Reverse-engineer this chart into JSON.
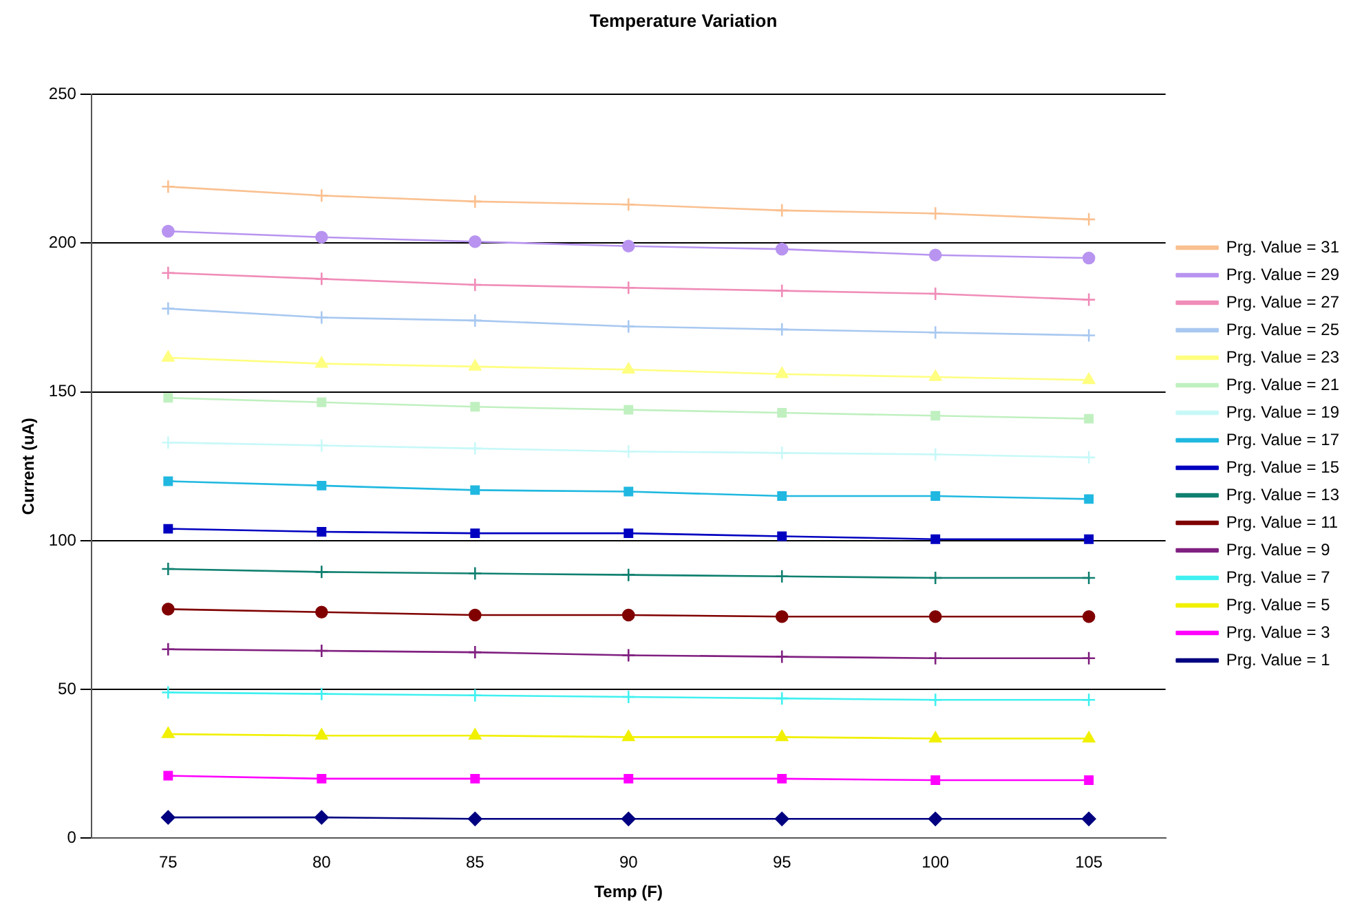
{
  "chart_data": {
    "type": "line",
    "title": "Temperature Variation",
    "xlabel": "Temp (F)",
    "ylabel": "Current (uA)",
    "categories": [
      "75",
      "80",
      "85",
      "90",
      "95",
      "100",
      "105"
    ],
    "ylim": [
      0,
      250
    ],
    "yticks": [
      0,
      50,
      100,
      150,
      200,
      250
    ],
    "grid": "y",
    "legend": "right",
    "line_style": "solid",
    "series": [
      {
        "name": "Prg. Value = 31",
        "color": "#fac090",
        "marker": "cross",
        "values": [
          219,
          216,
          214,
          213,
          211,
          210,
          208
        ]
      },
      {
        "name": "Prg. Value = 29",
        "color": "#b894f0",
        "marker": "circle",
        "values": [
          204,
          202,
          200.5,
          199,
          198,
          196,
          195
        ]
      },
      {
        "name": "Prg. Value = 27",
        "color": "#f08cb8",
        "marker": "cross",
        "values": [
          190,
          188,
          186,
          185,
          184,
          183,
          181
        ]
      },
      {
        "name": "Prg. Value = 25",
        "color": "#a8c8f0",
        "marker": "cross",
        "values": [
          178,
          175,
          174,
          172,
          171,
          170,
          169
        ]
      },
      {
        "name": "Prg. Value = 23",
        "color": "#ffff80",
        "marker": "triangle",
        "values": [
          161.5,
          159.5,
          158.5,
          157.5,
          156,
          155,
          154
        ]
      },
      {
        "name": "Prg. Value = 21",
        "color": "#c0f0c0",
        "marker": "square",
        "values": [
          148,
          146.5,
          145,
          144,
          143,
          142,
          141
        ]
      },
      {
        "name": "Prg. Value = 19",
        "color": "#c8f8f8",
        "marker": "cross",
        "values": [
          133,
          132,
          131,
          130,
          129.5,
          129,
          128
        ]
      },
      {
        "name": "Prg. Value = 17",
        "color": "#20b8e0",
        "marker": "square",
        "values": [
          120,
          118.5,
          117,
          116.5,
          115,
          115,
          114
        ]
      },
      {
        "name": "Prg. Value = 15",
        "color": "#0000c0",
        "marker": "square",
        "values": [
          104,
          103,
          102.5,
          102.5,
          101.5,
          100.5,
          100.5
        ]
      },
      {
        "name": "Prg. Value = 13",
        "color": "#108070",
        "marker": "cross",
        "values": [
          90.5,
          89.5,
          89,
          88.5,
          88,
          87.5,
          87.5
        ]
      },
      {
        "name": "Prg. Value = 11",
        "color": "#800000",
        "marker": "circle",
        "values": [
          77,
          76,
          75,
          75,
          74.5,
          74.5,
          74.5
        ]
      },
      {
        "name": "Prg. Value = 9",
        "color": "#802080",
        "marker": "cross",
        "values": [
          63.5,
          63,
          62.5,
          61.5,
          61,
          60.5,
          60.5
        ]
      },
      {
        "name": "Prg. Value = 7",
        "color": "#40f0f0",
        "marker": "cross",
        "values": [
          49,
          48.5,
          48,
          47.5,
          47,
          46.5,
          46.5
        ]
      },
      {
        "name": "Prg. Value = 5",
        "color": "#f0f000",
        "marker": "triangle",
        "values": [
          35,
          34.5,
          34.5,
          34,
          34,
          33.5,
          33.5
        ]
      },
      {
        "name": "Prg. Value = 3",
        "color": "#ff00ff",
        "marker": "square",
        "values": [
          21,
          20,
          20,
          20,
          20,
          19.5,
          19.5
        ]
      },
      {
        "name": "Prg. Value = 1",
        "color": "#000080",
        "marker": "diamond",
        "values": [
          7,
          7,
          6.5,
          6.5,
          6.5,
          6.5,
          6.5
        ]
      }
    ]
  }
}
